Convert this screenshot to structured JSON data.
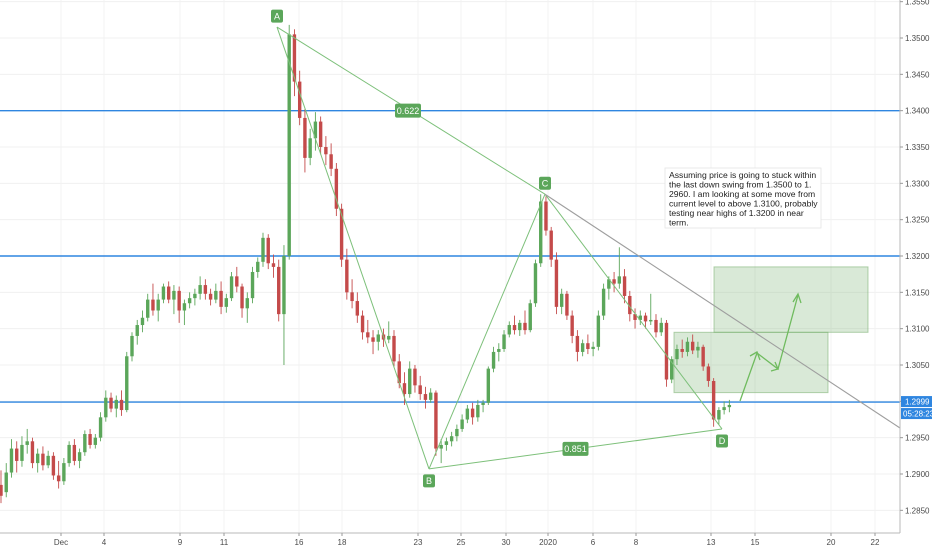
{
  "chart_data": {
    "type": "candlestick",
    "title": "",
    "xlabel": "",
    "ylabel": "",
    "ylim": [
      1.2815,
      1.3565
    ],
    "x_tick_labels": [
      "Dec",
      "4",
      "9",
      "11",
      "16",
      "18",
      "23",
      "25",
      "30",
      "2020",
      "6",
      "8",
      "13",
      "15",
      "20",
      "22"
    ],
    "y_tick_labels": [
      "1.3550",
      "1.3500",
      "1.3450",
      "1.3400",
      "1.3350",
      "1.3300",
      "1.3250",
      "1.3200",
      "1.3150",
      "1.3100",
      "1.3050",
      "1.3000",
      "1.2950",
      "1.2900",
      "1.2850"
    ],
    "y_tick_values": [
      1.355,
      1.35,
      1.345,
      1.34,
      1.335,
      1.33,
      1.325,
      1.32,
      1.315,
      1.31,
      1.305,
      1.3,
      1.295,
      1.29,
      1.285
    ],
    "colors": {
      "up": "#5ba65a",
      "down": "#c44a4a",
      "hline": "#2f86e0",
      "pattern": "#7dc07a",
      "trend": "#9e9e9e",
      "zone": "rgba(120,175,110,0.28)",
      "label_bg": "#5ba65a"
    },
    "horizontal_levels": [
      1.34,
      1.32,
      1.2999
    ],
    "pattern_points": [
      {
        "label": "A",
        "price": 1.3515
      },
      {
        "label": "B",
        "price": 1.2907
      },
      {
        "label": "C",
        "price": 1.3285
      },
      {
        "label": "D",
        "price": 1.2962
      }
    ],
    "ratios": [
      {
        "label": "0.622",
        "between": "A-C"
      },
      {
        "label": "0.851",
        "between": "B-D"
      }
    ],
    "target_zones": [
      {
        "from_price": 1.3095,
        "to_price": 1.3185
      },
      {
        "from_price": 1.3012,
        "to_price": 1.3095
      }
    ],
    "current_price_label": "1.2999",
    "countdown_label": "05:28:23",
    "annotation_lines": [
      "Assuming price is going to stuck within",
      "the last down swing from 1.3500 to 1.",
      "2960.  I am looking at some move from",
      "current level to above 1.3100, probably",
      "testing near highs of 1.3200 in near",
      "term."
    ],
    "candles": [
      [
        1.2885,
        1.2905,
        1.286,
        1.287
      ],
      [
        1.2875,
        1.2915,
        1.2868,
        1.2902
      ],
      [
        1.2902,
        1.2948,
        1.2895,
        1.2935
      ],
      [
        1.2935,
        1.2945,
        1.2902,
        1.2918
      ],
      [
        1.2918,
        1.2952,
        1.291,
        1.294
      ],
      [
        1.294,
        1.2962,
        1.2928,
        1.2945
      ],
      [
        1.2945,
        1.295,
        1.2908,
        1.2915
      ],
      [
        1.2915,
        1.2935,
        1.2902,
        1.2928
      ],
      [
        1.2928,
        1.2938,
        1.2905,
        1.2912
      ],
      [
        1.2912,
        1.2932,
        1.2908,
        1.2925
      ],
      [
        1.2925,
        1.293,
        1.2892,
        1.2898
      ],
      [
        1.2898,
        1.2918,
        1.288,
        1.289
      ],
      [
        1.289,
        1.2922,
        1.2885,
        1.2915
      ],
      [
        1.2915,
        1.2945,
        1.291,
        1.294
      ],
      [
        1.294,
        1.2948,
        1.2912,
        1.2918
      ],
      [
        1.2918,
        1.2935,
        1.2908,
        1.293
      ],
      [
        1.293,
        1.296,
        1.2925,
        1.2955
      ],
      [
        1.2955,
        1.2962,
        1.2935,
        1.294
      ],
      [
        1.294,
        1.2955,
        1.2935,
        1.295
      ],
      [
        1.295,
        1.2985,
        1.2945,
        1.2978
      ],
      [
        1.2978,
        1.3015,
        1.2972,
        1.3005
      ],
      [
        1.3005,
        1.3012,
        1.2985,
        1.299
      ],
      [
        1.299,
        1.3008,
        1.2978,
        1.3002
      ],
      [
        1.3002,
        1.3015,
        1.298,
        1.2988
      ],
      [
        1.2988,
        1.3068,
        1.2985,
        1.3062
      ],
      [
        1.3062,
        1.3095,
        1.3055,
        1.309
      ],
      [
        1.309,
        1.3112,
        1.3078,
        1.3105
      ],
      [
        1.3105,
        1.3125,
        1.3095,
        1.3115
      ],
      [
        1.3115,
        1.3148,
        1.311,
        1.314
      ],
      [
        1.314,
        1.3162,
        1.3118,
        1.3125
      ],
      [
        1.3125,
        1.3148,
        1.311,
        1.314
      ],
      [
        1.314,
        1.3162,
        1.3135,
        1.3158
      ],
      [
        1.3158,
        1.3165,
        1.3135,
        1.314
      ],
      [
        1.314,
        1.316,
        1.312,
        1.3152
      ],
      [
        1.3152,
        1.3158,
        1.3108,
        1.3125
      ],
      [
        1.3125,
        1.314,
        1.3105,
        1.3135
      ],
      [
        1.3135,
        1.315,
        1.3128,
        1.3142
      ],
      [
        1.3142,
        1.3155,
        1.3132,
        1.3148
      ],
      [
        1.3148,
        1.3172,
        1.314,
        1.316
      ],
      [
        1.316,
        1.3168,
        1.314,
        1.3148
      ],
      [
        1.3148,
        1.3155,
        1.3132,
        1.314
      ],
      [
        1.314,
        1.3162,
        1.3135,
        1.3152
      ],
      [
        1.3152,
        1.3165,
        1.312,
        1.313
      ],
      [
        1.313,
        1.3148,
        1.3122,
        1.3142
      ],
      [
        1.3142,
        1.3178,
        1.3138,
        1.3172
      ],
      [
        1.3172,
        1.3185,
        1.315,
        1.3158
      ],
      [
        1.3158,
        1.3162,
        1.3115,
        1.3128
      ],
      [
        1.3128,
        1.315,
        1.3108,
        1.3142
      ],
      [
        1.3142,
        1.3185,
        1.3135,
        1.3178
      ],
      [
        1.3178,
        1.3198,
        1.317,
        1.3192
      ],
      [
        1.3192,
        1.3232,
        1.3185,
        1.3225
      ],
      [
        1.3225,
        1.323,
        1.3182,
        1.319
      ],
      [
        1.319,
        1.3202,
        1.317,
        1.3185
      ],
      [
        1.3185,
        1.3195,
        1.311,
        1.312
      ],
      [
        1.312,
        1.3215,
        1.305,
        1.32
      ],
      [
        1.32,
        1.3518,
        1.3195,
        1.3505
      ],
      [
        1.3505,
        1.3512,
        1.342,
        1.344
      ],
      [
        1.344,
        1.3455,
        1.338,
        1.339
      ],
      [
        1.339,
        1.3402,
        1.3315,
        1.3335
      ],
      [
        1.3335,
        1.3375,
        1.3325,
        1.3362
      ],
      [
        1.3362,
        1.3398,
        1.3345,
        1.3385
      ],
      [
        1.3385,
        1.3392,
        1.334,
        1.335
      ],
      [
        1.335,
        1.3365,
        1.3325,
        1.334
      ],
      [
        1.334,
        1.3355,
        1.331,
        1.332
      ],
      [
        1.332,
        1.3328,
        1.3255,
        1.3265
      ],
      [
        1.3265,
        1.3272,
        1.3185,
        1.3195
      ],
      [
        1.3195,
        1.321,
        1.314,
        1.315
      ],
      [
        1.315,
        1.3168,
        1.3128,
        1.3138
      ],
      [
        1.3138,
        1.315,
        1.3108,
        1.3118
      ],
      [
        1.3118,
        1.3125,
        1.3085,
        1.3095
      ],
      [
        1.3095,
        1.3112,
        1.308,
        1.3088
      ],
      [
        1.3088,
        1.3098,
        1.3065,
        1.3082
      ],
      [
        1.3082,
        1.3098,
        1.307,
        1.3092
      ],
      [
        1.3092,
        1.31,
        1.3075,
        1.3085
      ],
      [
        1.3085,
        1.311,
        1.308,
        1.309
      ],
      [
        1.309,
        1.3098,
        1.3048,
        1.3055
      ],
      [
        1.3055,
        1.3065,
        1.3018,
        1.3025
      ],
      [
        1.3025,
        1.304,
        1.2995,
        1.301
      ],
      [
        1.301,
        1.3055,
        1.3005,
        1.3045
      ],
      [
        1.3045,
        1.305,
        1.3012,
        1.3022
      ],
      [
        1.3022,
        1.3035,
        1.3002,
        1.301
      ],
      [
        1.301,
        1.302,
        1.299,
        1.3002
      ],
      [
        1.3002,
        1.3018,
        1.2998,
        1.3012
      ],
      [
        1.3012,
        1.3015,
        1.2925,
        1.2935
      ],
      [
        1.2935,
        1.2948,
        1.2915,
        1.294
      ],
      [
        1.294,
        1.295,
        1.2932,
        1.2945
      ],
      [
        1.2945,
        1.2958,
        1.2938,
        1.2952
      ],
      [
        1.2952,
        1.2968,
        1.2945,
        1.2962
      ],
      [
        1.2962,
        1.2982,
        1.2958,
        1.2975
      ],
      [
        1.2975,
        1.2995,
        1.297,
        1.299
      ],
      [
        1.299,
        1.2998,
        1.2968,
        1.2978
      ],
      [
        1.2978,
        1.3002,
        1.2972,
        1.2995
      ],
      [
        1.2995,
        1.3002,
        1.2985,
        1.2998
      ],
      [
        1.2998,
        1.3048,
        1.2995,
        1.3045
      ],
      [
        1.3045,
        1.3075,
        1.304,
        1.3068
      ],
      [
        1.3068,
        1.308,
        1.3055,
        1.3072
      ],
      [
        1.3072,
        1.3098,
        1.3068,
        1.3092
      ],
      [
        1.3092,
        1.311,
        1.3088,
        1.3105
      ],
      [
        1.3105,
        1.3118,
        1.3092,
        1.3098
      ],
      [
        1.3098,
        1.3112,
        1.309,
        1.3108
      ],
      [
        1.3108,
        1.3125,
        1.3092,
        1.3098
      ],
      [
        1.3098,
        1.314,
        1.3095,
        1.3135
      ],
      [
        1.3135,
        1.3195,
        1.313,
        1.319
      ],
      [
        1.319,
        1.3285,
        1.3185,
        1.3275
      ],
      [
        1.3275,
        1.3282,
        1.3228,
        1.3235
      ],
      [
        1.3235,
        1.324,
        1.3185,
        1.3195
      ],
      [
        1.3195,
        1.3205,
        1.312,
        1.313
      ],
      [
        1.313,
        1.3155,
        1.312,
        1.3148
      ],
      [
        1.3148,
        1.3152,
        1.3112,
        1.3118
      ],
      [
        1.3118,
        1.3125,
        1.308,
        1.309
      ],
      [
        1.309,
        1.3098,
        1.3055,
        1.3068
      ],
      [
        1.3068,
        1.3085,
        1.3062,
        1.308
      ],
      [
        1.308,
        1.3092,
        1.3065,
        1.3072
      ],
      [
        1.3072,
        1.3082,
        1.3062,
        1.3075
      ],
      [
        1.3075,
        1.3125,
        1.307,
        1.3118
      ],
      [
        1.3118,
        1.3162,
        1.3112,
        1.3155
      ],
      [
        1.3155,
        1.3172,
        1.314,
        1.3168
      ],
      [
        1.3168,
        1.3178,
        1.315,
        1.3162
      ],
      [
        1.3162,
        1.3212,
        1.3155,
        1.3172
      ],
      [
        1.3172,
        1.3182,
        1.3135,
        1.3145
      ],
      [
        1.3145,
        1.3152,
        1.311,
        1.312
      ],
      [
        1.312,
        1.3128,
        1.31,
        1.3112
      ],
      [
        1.3112,
        1.3125,
        1.3105,
        1.3118
      ],
      [
        1.3118,
        1.3122,
        1.31,
        1.311
      ],
      [
        1.311,
        1.3148,
        1.3105,
        1.3112
      ],
      [
        1.3112,
        1.312,
        1.3088,
        1.3095
      ],
      [
        1.3095,
        1.3115,
        1.309,
        1.3108
      ],
      [
        1.3108,
        1.3112,
        1.302,
        1.303
      ],
      [
        1.303,
        1.3062,
        1.3025,
        1.3058
      ],
      [
        1.3058,
        1.3078,
        1.305,
        1.3072
      ],
      [
        1.3072,
        1.3085,
        1.306,
        1.3068
      ],
      [
        1.3068,
        1.3088,
        1.3062,
        1.3082
      ],
      [
        1.3082,
        1.3092,
        1.3065,
        1.307
      ],
      [
        1.307,
        1.3082,
        1.306,
        1.3075
      ],
      [
        1.3075,
        1.3078,
        1.3042,
        1.3048
      ],
      [
        1.3048,
        1.3052,
        1.302,
        1.3028
      ],
      [
        1.3028,
        1.3032,
        1.2965,
        1.2975
      ],
      [
        1.2975,
        1.2992,
        1.2968,
        1.2988
      ],
      [
        1.2988,
        1.3,
        1.2982,
        1.2992
      ],
      [
        1.2992,
        1.3002,
        1.2985,
        1.2995
      ]
    ]
  }
}
